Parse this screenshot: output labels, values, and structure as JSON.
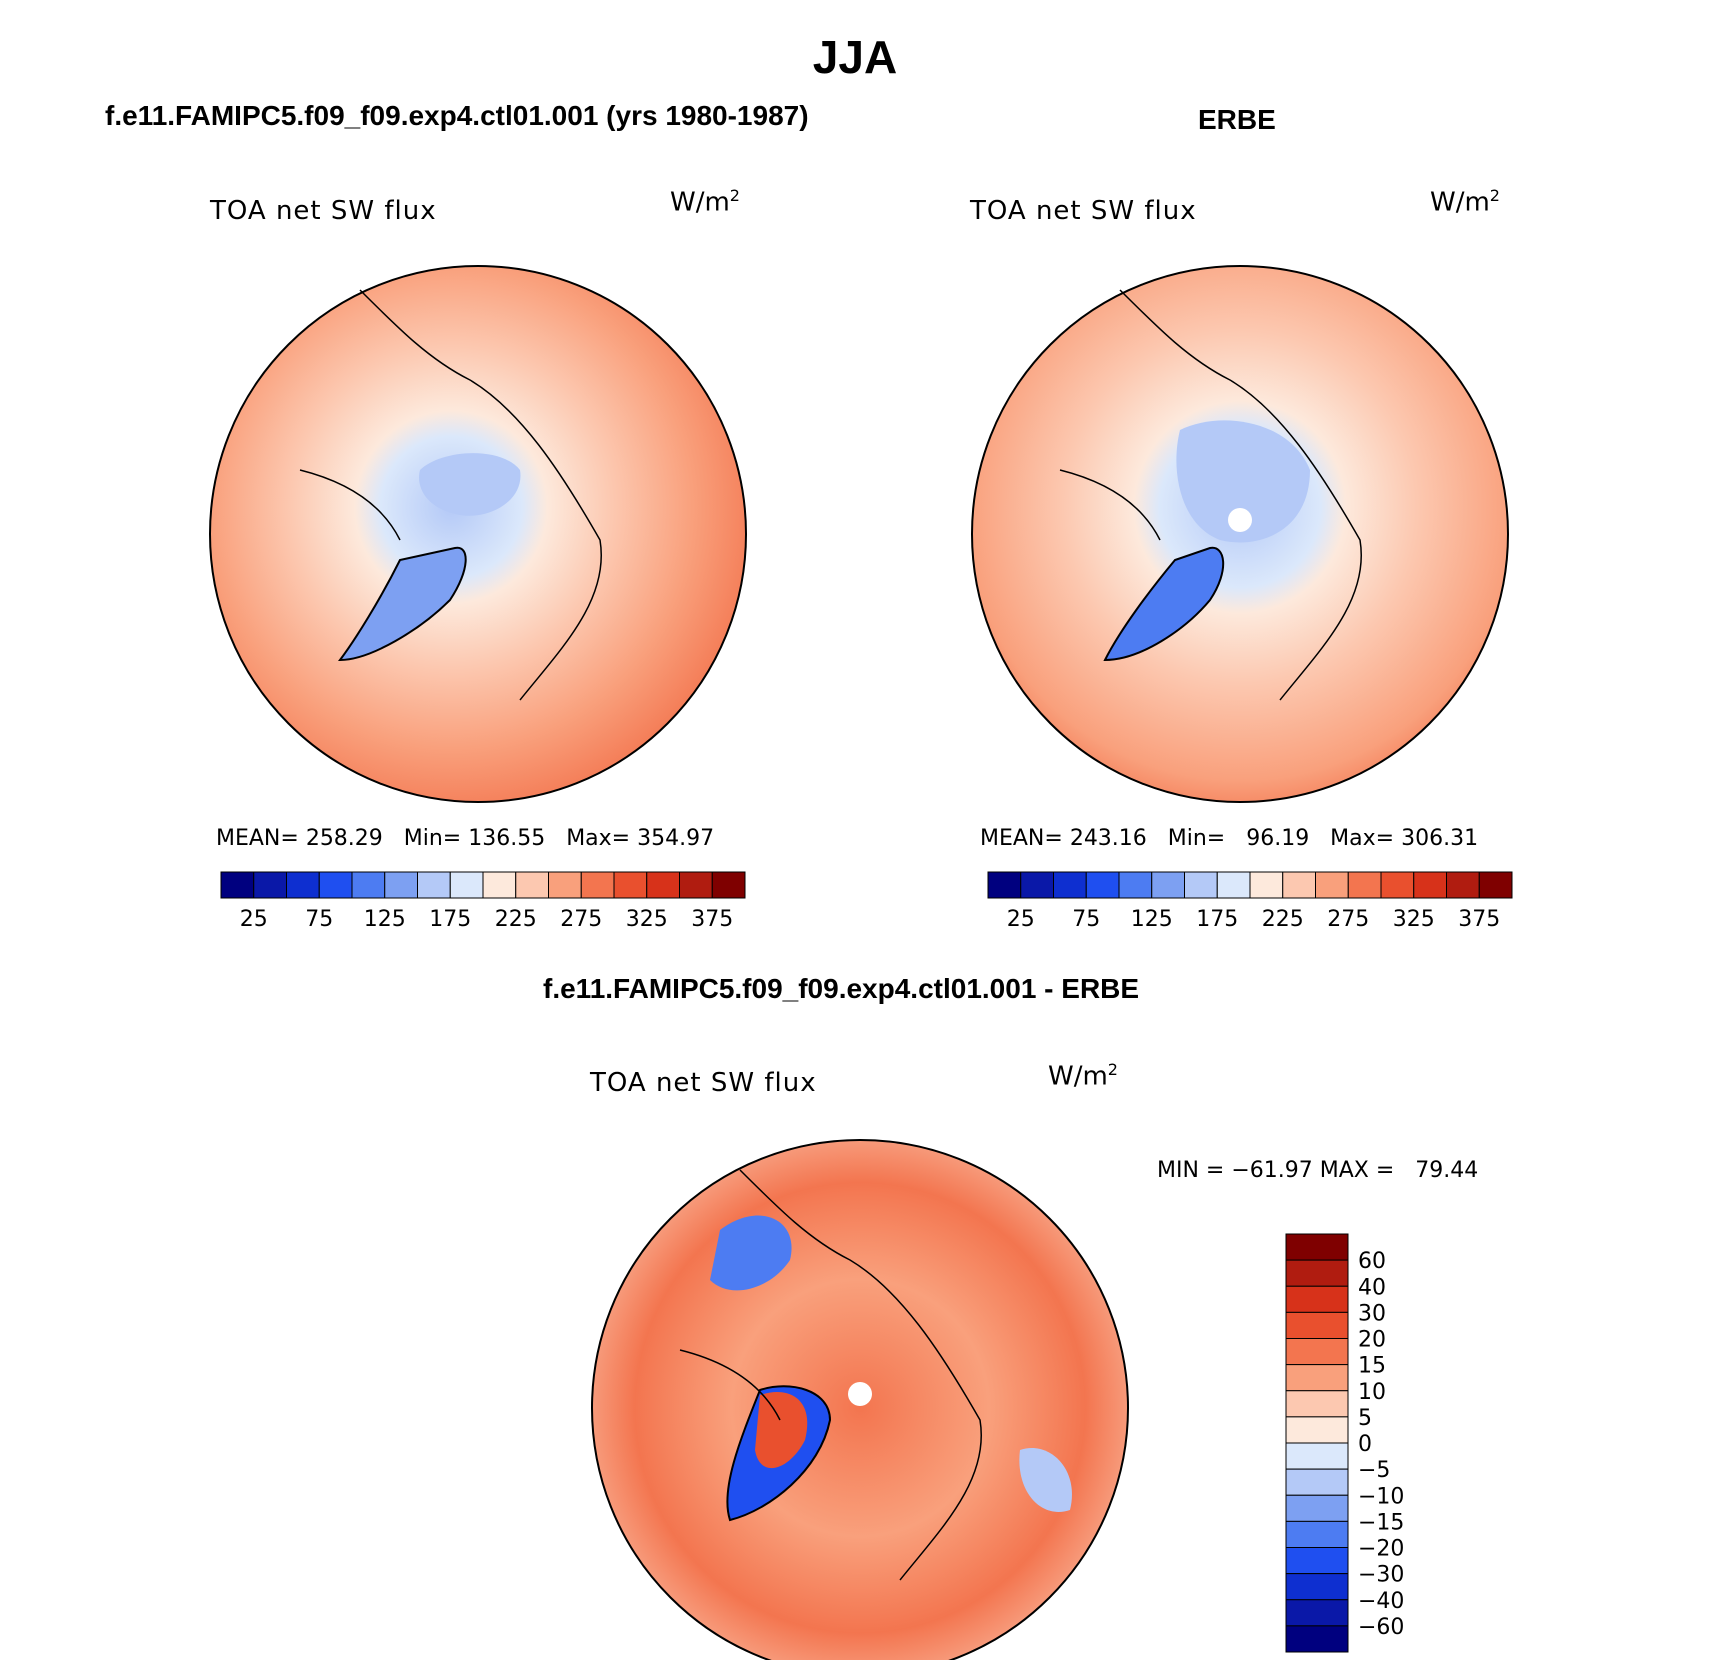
{
  "main_title": "JJA",
  "panels": [
    {
      "title": "f.e11.FAMIPC5.f09_f09.exp4.ctl01.001 (yrs 1980-1987)",
      "variable": "TOA net SW flux",
      "units": "W/m",
      "units_sup": "2",
      "stats": "MEAN= 258.29   Min= 136.55   Max= 354.97"
    },
    {
      "title": "ERBE",
      "variable": "TOA net SW flux",
      "units": "W/m",
      "units_sup": "2",
      "stats": "MEAN= 243.16   Min=   96.19   Max= 306.31"
    },
    {
      "title": "f.e11.FAMIPC5.f09_f09.exp4.ctl01.001 - ERBE",
      "variable": "TOA net SW flux",
      "units": "W/m",
      "units_sup": "2",
      "stats": "MIN = −61.97 MAX =   79.44"
    }
  ],
  "chart_data": [
    {
      "type": "heatmap",
      "projection": "north polar stereographic",
      "title": "f.e11.FAMIPC5.f09_f09.exp4.ctl01.001 (yrs 1980-1987)",
      "variable": "TOA net SW flux",
      "units": "W/m2",
      "mean": 258.29,
      "min": 136.55,
      "max": 354.97,
      "colorbar": {
        "orientation": "horizontal",
        "ticks": [
          25,
          75,
          125,
          175,
          225,
          275,
          325,
          375
        ],
        "tick_labels": [
          "25",
          "75",
          "125",
          "175",
          "225",
          "275",
          "325",
          "375"
        ],
        "colors": [
          "#00007f",
          "#0a18a8",
          "#0e2fd0",
          "#1f4ff0",
          "#4d7cf2",
          "#7da0f2",
          "#b4c9f7",
          "#dbe8fb",
          "#fde9dc",
          "#fcc8b0",
          "#f9a07c",
          "#f3754f",
          "#e9502e",
          "#d7321a",
          "#b01c10",
          "#7f0000"
        ]
      }
    },
    {
      "type": "heatmap",
      "projection": "north polar stereographic",
      "title": "ERBE",
      "variable": "TOA net SW flux",
      "units": "W/m2",
      "mean": 243.16,
      "min": 96.19,
      "max": 306.31,
      "colorbar": {
        "orientation": "horizontal",
        "ticks": [
          25,
          75,
          125,
          175,
          225,
          275,
          325,
          375
        ],
        "tick_labels": [
          "25",
          "75",
          "125",
          "175",
          "225",
          "275",
          "325",
          "375"
        ],
        "colors": [
          "#00007f",
          "#0a18a8",
          "#0e2fd0",
          "#1f4ff0",
          "#4d7cf2",
          "#7da0f2",
          "#b4c9f7",
          "#dbe8fb",
          "#fde9dc",
          "#fcc8b0",
          "#f9a07c",
          "#f3754f",
          "#e9502e",
          "#d7321a",
          "#b01c10",
          "#7f0000"
        ]
      }
    },
    {
      "type": "heatmap",
      "projection": "north polar stereographic",
      "title": "f.e11.FAMIPC5.f09_f09.exp4.ctl01.001 - ERBE",
      "variable": "TOA net SW flux",
      "units": "W/m2",
      "min": -61.97,
      "max": 79.44,
      "colorbar": {
        "orientation": "vertical",
        "tick_labels": [
          "60",
          "40",
          "30",
          "20",
          "15",
          "10",
          "5",
          "0",
          "−5",
          "−10",
          "−15",
          "−20",
          "−30",
          "−40",
          "−60"
        ],
        "colors": [
          "#7f0000",
          "#b01c10",
          "#d7321a",
          "#e9502e",
          "#f3754f",
          "#f9a07c",
          "#fcc8b0",
          "#fde9dc",
          "#dbe8fb",
          "#b4c9f7",
          "#7da0f2",
          "#4d7cf2",
          "#1f4ff0",
          "#0e2fd0",
          "#0a18a8",
          "#00007f"
        ]
      }
    }
  ]
}
